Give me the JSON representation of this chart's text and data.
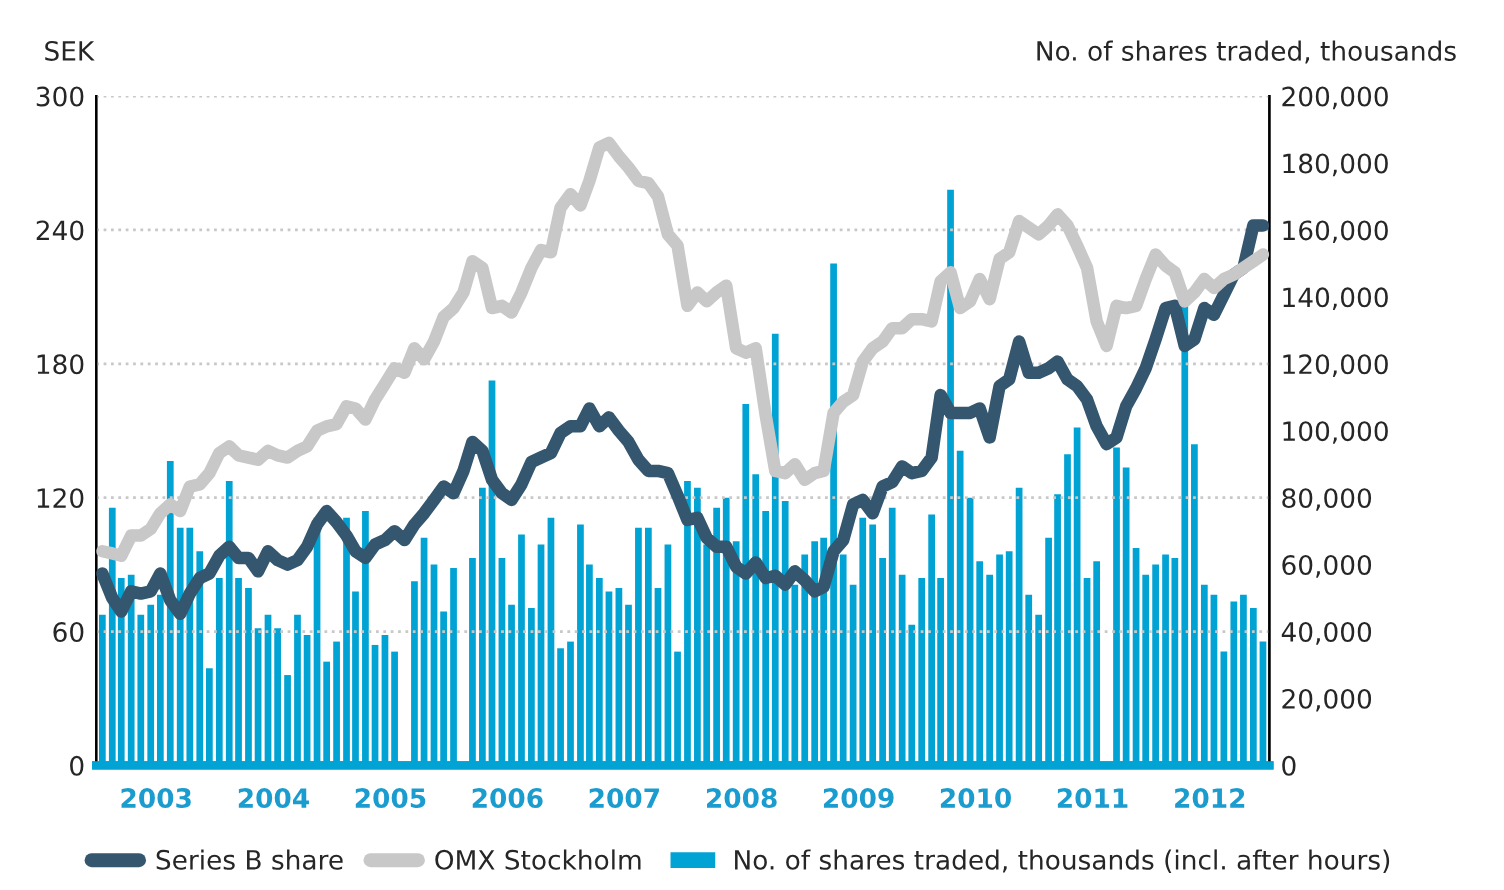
{
  "chart_data": {
    "type": "line",
    "ylabel": "SEK",
    "y2label": "No. of shares traded, thousands",
    "x": [
      "2003-01-15",
      "2003-02-15",
      "2003-03-15",
      "2003-04-15",
      "2003-05-15",
      "2003-06-15",
      "2003-07-15",
      "2003-08-15",
      "2003-09-15",
      "2003-10-15",
      "2003-11-15",
      "2003-12-15",
      "2004-01-15",
      "2004-02-15",
      "2004-03-15",
      "2004-04-15",
      "2004-05-15",
      "2004-06-15",
      "2004-07-15",
      "2004-08-15",
      "2004-09-15",
      "2004-10-15",
      "2004-11-15",
      "2004-12-15",
      "2005-01-15",
      "2005-02-15",
      "2005-03-15",
      "2005-04-15",
      "2005-05-15",
      "2005-06-15",
      "2005-07-15",
      "2005-08-15",
      "2005-09-15",
      "2005-10-15",
      "2005-11-15",
      "2005-12-15",
      "2006-01-15",
      "2006-02-15",
      "2006-03-15",
      "2006-04-15",
      "2006-05-15",
      "2006-06-15",
      "2006-07-15",
      "2006-08-15",
      "2006-09-15",
      "2006-10-15",
      "2006-11-15",
      "2006-12-15",
      "2007-01-15",
      "2007-02-15",
      "2007-03-15",
      "2007-04-15",
      "2007-05-15",
      "2007-06-15",
      "2007-07-15",
      "2007-08-15",
      "2007-09-15",
      "2007-10-15",
      "2007-11-15",
      "2007-12-15",
      "2008-01-15",
      "2008-02-15",
      "2008-03-15",
      "2008-04-15",
      "2008-05-15",
      "2008-06-15",
      "2008-07-15",
      "2008-08-15",
      "2008-09-15",
      "2008-10-15",
      "2008-11-15",
      "2008-12-15",
      "2009-01-15",
      "2009-02-15",
      "2009-03-15",
      "2009-04-15",
      "2009-05-15",
      "2009-06-15",
      "2009-07-15",
      "2009-08-15",
      "2009-09-15",
      "2009-10-15",
      "2009-11-15",
      "2009-12-15",
      "2010-01-15",
      "2010-02-15",
      "2010-03-15",
      "2010-04-15",
      "2010-05-15",
      "2010-06-15",
      "2010-07-15",
      "2010-08-15",
      "2010-09-15",
      "2010-10-15",
      "2010-11-15",
      "2010-12-15",
      "2011-01-15",
      "2011-02-15",
      "2011-03-15",
      "2011-04-15",
      "2011-05-15",
      "2011-06-15",
      "2011-07-15",
      "2011-08-15",
      "2011-09-15",
      "2011-10-15",
      "2011-11-15",
      "2011-12-15",
      "2012-01-15",
      "2012-02-15",
      "2012-03-15",
      "2012-04-15",
      "2012-05-15",
      "2012-06-15",
      "2012-07-15",
      "2012-08-15",
      "2012-09-15",
      "2012-10-15",
      "2012-11-15",
      "2012-12-15"
    ],
    "series": [
      {
        "name": "No. of shares traded, thousands (incl. after hours)",
        "type": "bar",
        "axis": "y2",
        "color": "#00a3d3",
        "values": [
          45000,
          77000,
          56000,
          57000,
          45000,
          48000,
          51000,
          91000,
          71000,
          71000,
          64000,
          29000,
          56000,
          85000,
          56000,
          53000,
          41000,
          45000,
          41000,
          27000,
          45000,
          39000,
          74000,
          31000,
          37000,
          74000,
          52000,
          76000,
          36000,
          39000,
          34000,
          null,
          55000,
          68000,
          60000,
          46000,
          59000,
          null,
          62000,
          83000,
          115000,
          62000,
          48000,
          69000,
          47000,
          66000,
          74000,
          35000,
          37000,
          72000,
          60000,
          56000,
          52000,
          53000,
          48000,
          71000,
          71000,
          53000,
          66000,
          34000,
          85000,
          83000,
          66000,
          77000,
          80000,
          67000,
          108000,
          87000,
          76000,
          129000,
          79000,
          54000,
          63000,
          67000,
          68000,
          150000,
          63000,
          54000,
          74000,
          72000,
          62000,
          77000,
          57000,
          42000,
          56000,
          75000,
          56000,
          172000,
          94000,
          80000,
          61000,
          57000,
          63000,
          64000,
          83000,
          51000,
          45000,
          68000,
          81000,
          93000,
          101000,
          56000,
          61000,
          null,
          95000,
          89000,
          65000,
          57000,
          60000,
          63000,
          62000,
          139000,
          96000,
          54000,
          51000,
          34000,
          49000,
          51000,
          47000,
          37000
        ]
      },
      {
        "name": "Series B share",
        "color": "#34566e",
        "values": [
          86,
          75,
          69,
          78,
          77,
          78,
          86,
          74,
          68,
          77,
          84,
          86,
          94,
          98,
          93,
          93,
          87,
          96,
          92,
          90,
          92,
          98,
          108,
          114,
          109,
          103,
          96,
          93,
          99,
          101,
          105,
          101,
          108,
          113,
          119,
          125,
          122,
          132,
          145,
          141,
          128,
          122,
          119,
          126,
          136,
          138,
          140,
          149,
          152,
          152,
          160,
          152,
          156,
          150,
          145,
          137,
          132,
          132,
          131,
          121,
          110,
          111,
          102,
          98,
          98,
          89,
          86,
          91,
          84,
          85,
          81,
          87,
          83,
          78,
          80,
          96,
          101,
          117,
          119,
          113,
          125,
          127,
          134,
          131,
          132,
          138,
          166,
          158,
          158,
          158,
          160,
          147,
          170,
          173,
          190,
          176,
          176,
          178,
          181,
          173,
          170,
          164,
          152,
          144,
          147,
          161,
          169,
          178,
          191,
          205,
          206,
          188,
          191,
          205,
          202,
          211,
          220,
          223,
          242,
          242
        ]
      },
      {
        "name": "OMX Stockholm",
        "color": "#c8c8c8",
        "values": [
          96,
          95,
          94,
          103,
          103,
          106,
          113,
          117,
          114,
          125,
          126,
          131,
          140,
          143,
          139,
          138,
          137,
          141,
          139,
          138,
          141,
          143,
          150,
          152,
          153,
          161,
          160,
          155,
          164,
          171,
          178,
          176,
          187,
          182,
          190,
          201,
          205,
          212,
          226,
          223,
          205,
          206,
          203,
          212,
          223,
          231,
          230,
          250,
          256,
          251,
          262,
          277,
          279,
          273,
          268,
          262,
          261,
          255,
          238,
          233,
          206,
          212,
          208,
          212,
          215,
          187,
          185,
          187,
          157,
          132,
          131,
          135,
          128,
          131,
          132,
          158,
          163,
          166,
          181,
          187,
          190,
          196,
          196,
          200,
          200,
          199,
          217,
          221,
          205,
          208,
          218,
          209,
          227,
          230,
          244,
          241,
          238,
          242,
          247,
          242,
          233,
          223,
          199,
          188,
          206,
          205,
          206,
          218,
          229,
          224,
          221,
          208,
          212,
          218,
          214,
          218,
          220,
          223,
          226,
          229
        ]
      }
    ],
    "xlim": [
      "2002-12-27",
      "2013-01-04"
    ],
    "xticks": [
      {
        "value": "2003-07-02",
        "label": "2003"
      },
      {
        "value": "2004-07-02",
        "label": "2004"
      },
      {
        "value": "2005-07-02",
        "label": "2005"
      },
      {
        "value": "2006-07-02",
        "label": "2006"
      },
      {
        "value": "2007-07-02",
        "label": "2007"
      },
      {
        "value": "2008-07-02",
        "label": "2008"
      },
      {
        "value": "2009-07-02",
        "label": "2009"
      },
      {
        "value": "2010-07-02",
        "label": "2010"
      },
      {
        "value": "2011-07-02",
        "label": "2011"
      },
      {
        "value": "2012-07-02",
        "label": "2012"
      }
    ],
    "ylim": [
      0,
      300
    ],
    "yticks": [
      0,
      60,
      120,
      180,
      240,
      300
    ],
    "y2lim": [
      0,
      200000
    ],
    "y2ticks": [
      {
        "value": 0,
        "label": "0"
      },
      {
        "value": 20000,
        "label": "20,000"
      },
      {
        "value": 40000,
        "label": "40,000"
      },
      {
        "value": 60000,
        "label": "60,000"
      },
      {
        "value": 80000,
        "label": "80,000"
      },
      {
        "value": 100000,
        "label": "100,000"
      },
      {
        "value": 120000,
        "label": "120,000"
      },
      {
        "value": 140000,
        "label": "140,000"
      },
      {
        "value": 160000,
        "label": "160,000"
      },
      {
        "value": 180000,
        "label": "180,000"
      },
      {
        "value": 200000,
        "label": "200,000"
      }
    ],
    "grid": "y",
    "legend": "bottom",
    "marker": "none",
    "line_style": "solid"
  }
}
